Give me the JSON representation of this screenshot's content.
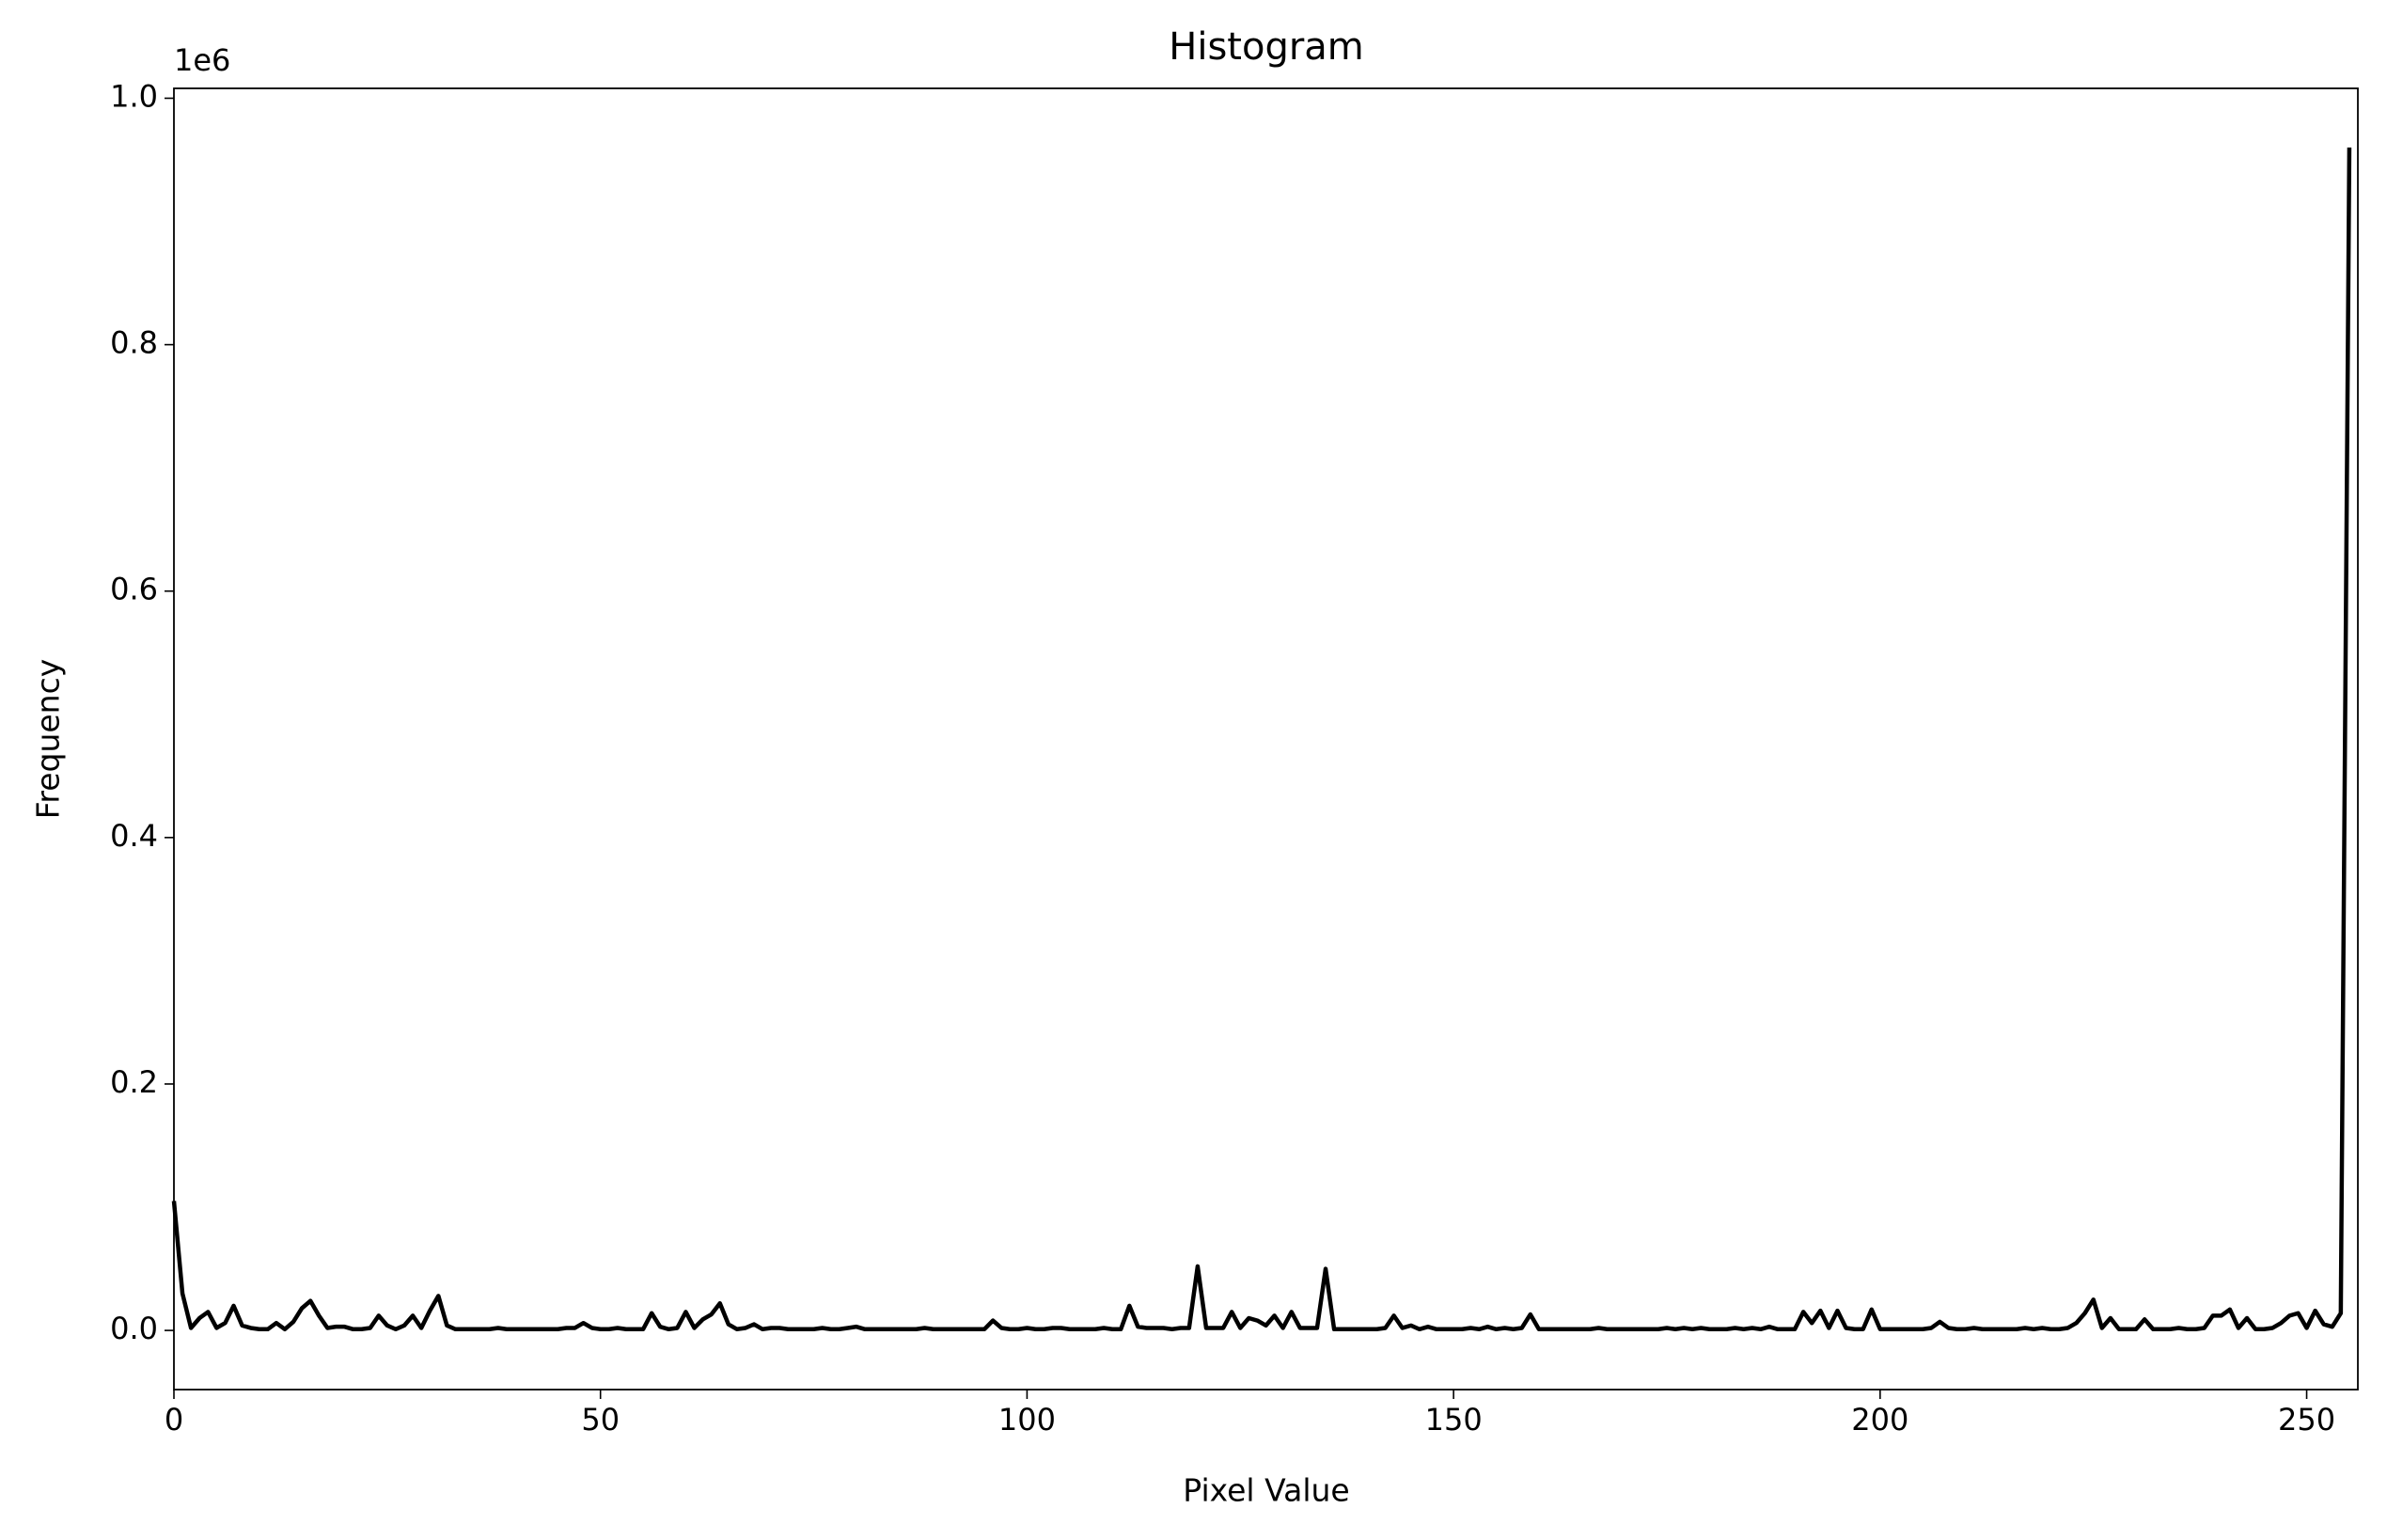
{
  "chart_data": {
    "type": "line",
    "title": "Histogram",
    "xlabel": "Pixel Value",
    "ylabel": "Frequency",
    "offset_text": "1e6",
    "color": "#000000",
    "x": [
      0,
      1,
      2,
      3,
      4,
      5,
      6,
      7,
      8,
      9,
      10,
      11,
      12,
      13,
      14,
      15,
      16,
      17,
      18,
      19,
      20,
      21,
      22,
      23,
      24,
      25,
      26,
      27,
      28,
      29,
      30,
      31,
      32,
      33,
      34,
      35,
      36,
      37,
      38,
      39,
      40,
      41,
      42,
      43,
      44,
      45,
      46,
      47,
      48,
      49,
      50,
      51,
      52,
      53,
      54,
      55,
      56,
      57,
      58,
      59,
      60,
      61,
      62,
      63,
      64,
      65,
      66,
      67,
      68,
      69,
      70,
      71,
      72,
      73,
      74,
      75,
      76,
      77,
      78,
      79,
      80,
      81,
      82,
      83,
      84,
      85,
      86,
      87,
      88,
      89,
      90,
      91,
      92,
      93,
      94,
      95,
      96,
      97,
      98,
      99,
      100,
      101,
      102,
      103,
      104,
      105,
      106,
      107,
      108,
      109,
      110,
      111,
      112,
      113,
      114,
      115,
      116,
      117,
      118,
      119,
      120,
      121,
      122,
      123,
      124,
      125,
      126,
      127,
      128,
      129,
      130,
      131,
      132,
      133,
      134,
      135,
      136,
      137,
      138,
      139,
      140,
      141,
      142,
      143,
      144,
      145,
      146,
      147,
      148,
      149,
      150,
      151,
      152,
      153,
      154,
      155,
      156,
      157,
      158,
      159,
      160,
      161,
      162,
      163,
      164,
      165,
      166,
      167,
      168,
      169,
      170,
      171,
      172,
      173,
      174,
      175,
      176,
      177,
      178,
      179,
      180,
      181,
      182,
      183,
      184,
      185,
      186,
      187,
      188,
      189,
      190,
      191,
      192,
      193,
      194,
      195,
      196,
      197,
      198,
      199,
      200,
      201,
      202,
      203,
      204,
      205,
      206,
      207,
      208,
      209,
      210,
      211,
      212,
      213,
      214,
      215,
      216,
      217,
      218,
      219,
      220,
      221,
      222,
      223,
      224,
      225,
      226,
      227,
      228,
      229,
      230,
      231,
      232,
      233,
      234,
      235,
      236,
      237,
      238,
      239,
      240,
      241,
      242,
      243,
      244,
      245,
      246,
      247,
      248,
      249,
      250,
      251,
      252,
      253,
      254,
      255
    ],
    "values": [
      0.105,
      0.03,
      0.002,
      0.01,
      0.015,
      0.002,
      0.006,
      0.02,
      0.004,
      0.002,
      0.001,
      0.001,
      0.006,
      0.001,
      0.007,
      0.018,
      0.024,
      0.012,
      0.002,
      0.003,
      0.003,
      0.001,
      0.001,
      0.002,
      0.012,
      0.004,
      0.001,
      0.004,
      0.012,
      0.002,
      0.016,
      0.028,
      0.004,
      0.001,
      0.001,
      0.001,
      0.001,
      0.001,
      0.002,
      0.001,
      0.001,
      0.001,
      0.001,
      0.001,
      0.001,
      0.001,
      0.002,
      0.002,
      0.006,
      0.002,
      0.001,
      0.001,
      0.002,
      0.001,
      0.001,
      0.001,
      0.014,
      0.003,
      0.001,
      0.002,
      0.015,
      0.002,
      0.009,
      0.013,
      0.022,
      0.005,
      0.001,
      0.002,
      0.005,
      0.001,
      0.002,
      0.002,
      0.001,
      0.001,
      0.001,
      0.001,
      0.002,
      0.001,
      0.001,
      0.002,
      0.003,
      0.001,
      0.001,
      0.001,
      0.001,
      0.001,
      0.001,
      0.001,
      0.002,
      0.001,
      0.001,
      0.001,
      0.001,
      0.001,
      0.001,
      0.001,
      0.008,
      0.002,
      0.001,
      0.001,
      0.002,
      0.001,
      0.001,
      0.002,
      0.002,
      0.001,
      0.001,
      0.001,
      0.001,
      0.002,
      0.001,
      0.001,
      0.02,
      0.003,
      0.002,
      0.002,
      0.002,
      0.001,
      0.002,
      0.002,
      0.052,
      0.002,
      0.002,
      0.002,
      0.015,
      0.002,
      0.01,
      0.008,
      0.004,
      0.012,
      0.002,
      0.015,
      0.002,
      0.002,
      0.002,
      0.05,
      0.001,
      0.001,
      0.001,
      0.001,
      0.001,
      0.001,
      0.002,
      0.012,
      0.002,
      0.004,
      0.001,
      0.003,
      0.001,
      0.001,
      0.001,
      0.001,
      0.002,
      0.001,
      0.003,
      0.001,
      0.002,
      0.001,
      0.002,
      0.013,
      0.001,
      0.001,
      0.001,
      0.001,
      0.001,
      0.001,
      0.001,
      0.002,
      0.001,
      0.001,
      0.001,
      0.001,
      0.001,
      0.001,
      0.001,
      0.002,
      0.001,
      0.002,
      0.001,
      0.002,
      0.001,
      0.001,
      0.001,
      0.002,
      0.001,
      0.002,
      0.001,
      0.003,
      0.001,
      0.001,
      0.001,
      0.015,
      0.006,
      0.016,
      0.002,
      0.016,
      0.002,
      0.001,
      0.001,
      0.017,
      0.001,
      0.001,
      0.001,
      0.001,
      0.001,
      0.001,
      0.002,
      0.007,
      0.002,
      0.001,
      0.001,
      0.002,
      0.001,
      0.001,
      0.001,
      0.001,
      0.001,
      0.002,
      0.001,
      0.002,
      0.001,
      0.001,
      0.002,
      0.006,
      0.014,
      0.025,
      0.002,
      0.01,
      0.001,
      0.001,
      0.001,
      0.009,
      0.001,
      0.001,
      0.001,
      0.002,
      0.001,
      0.001,
      0.002,
      0.012,
      0.012,
      0.017,
      0.002,
      0.01,
      0.001,
      0.001,
      0.002,
      0.006,
      0.012,
      0.014,
      0.002,
      0.016,
      0.005,
      0.003,
      0.014,
      0.96
    ],
    "xlim": [
      0,
      256
    ],
    "ylim": [
      -0.048,
      1.008
    ],
    "xticks": [
      0,
      50,
      100,
      150,
      200,
      250
    ],
    "yticks": [
      {
        "value": 0,
        "label": "0.0"
      },
      0.2,
      0.4,
      0.6,
      0.8,
      {
        "value": 1,
        "label": "1.0"
      }
    ]
  }
}
